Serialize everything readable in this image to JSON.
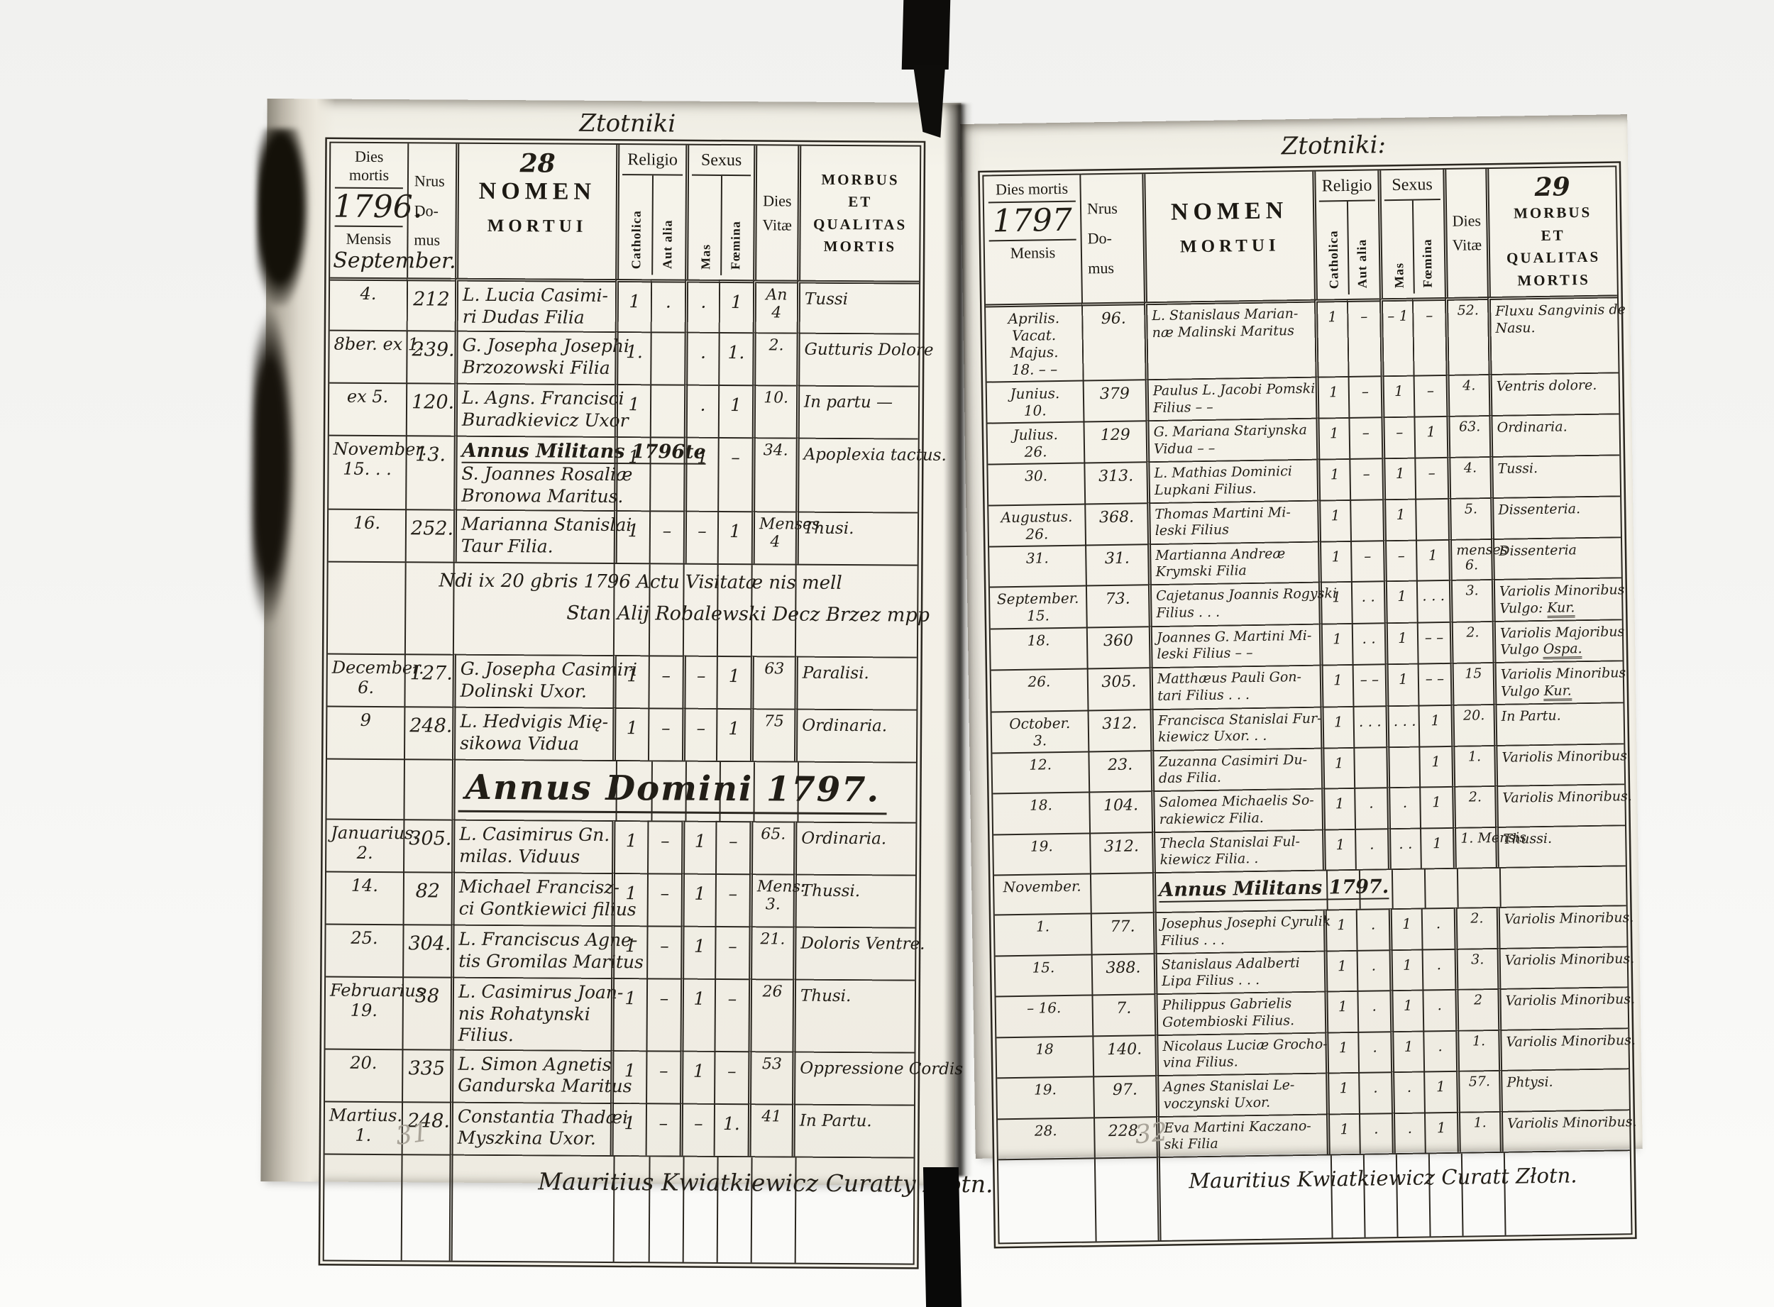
{
  "book": {
    "left_page": {
      "running_title": "Ztotniki",
      "page_number": "28",
      "pencil_mark": "31",
      "header": {
        "dies_mortis": "Dies mortis",
        "year": "1796.",
        "mensis_label": "Mensis",
        "month": "September.",
        "nrus": "Nrus\nDo-\nmus",
        "nomen": "NOMEN",
        "mortui": "MORTUI",
        "religio": "Religio",
        "catholica": "Catholica",
        "aut_alia": "Aut alia",
        "sexus": "Sexus",
        "mas": "Mas",
        "foemina": "Fœmina",
        "dies": "Dies",
        "vitae": "Vitæ",
        "morbus_lines": "MORBUS\nET\nQUALITAS\nMORTIS"
      },
      "rows": [
        {
          "date": "4.",
          "house": "212",
          "name": "L. Lucia Casimi-\nri Dudas Filia",
          "cath": "1",
          "aut": ".",
          "mas": ".",
          "foem": "1",
          "vitae": "An\n4",
          "morbus": "Tussi"
        },
        {
          "date": "8ber. ex 1.",
          "house": "239.",
          "name": "G. Josepha Josephi\nBrzozowski Filia",
          "cath": "1.",
          "aut": "",
          "mas": ".",
          "foem": "1.",
          "vitae": "2.",
          "morbus": "Gutturis Dolore"
        },
        {
          "date": "ex 5.",
          "house": "120.",
          "name": "L. Agns. Francisci\nBuradkievicz Uxor",
          "cath": "1",
          "aut": "",
          "mas": ".",
          "foem": "1",
          "vitae": "10.",
          "morbus": "In partu —"
        },
        {
          "date": "November.\n15. . .",
          "house": "13.",
          "heading": "Annus Militans 1796te",
          "name": "S. Joannes Rosaliæ\nBronowa Maritus.",
          "cath": "1",
          "aut": "",
          "mas": "1",
          "foem": "–",
          "vitae": "34.",
          "morbus": "Apoplexia tactus."
        },
        {
          "date": "16.",
          "house": "252.",
          "name": "Marianna Stanislai\nTaur Filia.",
          "cath": "1",
          "aut": "–",
          "mas": "–",
          "foem": "1",
          "vitae": "Menses\n4",
          "morbus": "Thusi."
        },
        {
          "type": "note",
          "line1": "Ndi ix 20 gbris 1796 Actu Visitatæ nis mell",
          "line2": "Stan Alij Robalewski Decz Brzez mpp"
        },
        {
          "date": "December.\n6.",
          "house": "127.",
          "name": "G. Josepha Casimiri\nDolinski Uxor.",
          "cath": "1",
          "aut": "–",
          "mas": "–",
          "foem": "1",
          "vitae": "63",
          "morbus": "Paralisi."
        },
        {
          "date": "9",
          "house": "248.",
          "name": "L. Hedvigis Mię-\nsikowa Vidua",
          "cath": "1",
          "aut": "–",
          "mas": "–",
          "foem": "1",
          "vitae": "75",
          "morbus": "Ordinaria."
        },
        {
          "type": "section",
          "date": "",
          "text": "Annus Domini 1797.",
          "big": true
        },
        {
          "date": "Januarius.\n2.",
          "house": "305.",
          "name": "L. Casimirus Gn.\nmilas. Viduus",
          "cath": "1",
          "aut": "–",
          "mas": "1",
          "foem": "–",
          "vitae": "65.",
          "morbus": "Ordinaria."
        },
        {
          "date": "14.",
          "house": "82",
          "name": "Michael Francisz-\nci Gontkiewici filius",
          "cath": "1",
          "aut": "–",
          "mas": "1",
          "foem": "–",
          "vitae": "Mens:\n3.",
          "morbus": "Thussi."
        },
        {
          "date": "25.",
          "house": "304.",
          "name": "L. Franciscus Agne-\ntis Gromilas Maritus",
          "cath": "1",
          "aut": "–",
          "mas": "1",
          "foem": "–",
          "vitae": "21.",
          "morbus": "Doloris Ventre."
        },
        {
          "date": "Februarius\n19.",
          "house": "38",
          "name": "L. Casimirus Joan-\nnis Rohatynski\nFilius.",
          "cath": "1",
          "aut": "–",
          "mas": "1",
          "foem": "–",
          "vitae": "26",
          "morbus": "Thusi."
        },
        {
          "date": "20.",
          "house": "335",
          "name": "L. Simon Agnetis\nGandurska Maritus",
          "cath": "1",
          "aut": "–",
          "mas": "1",
          "foem": "–",
          "vitae": "53",
          "morbus": "Oppressione Cordis"
        },
        {
          "date": "Martius.\n1.",
          "house": "248.",
          "name": "Constantia Thadæi\nMyszkina Uxor.",
          "cath": "1",
          "aut": "–",
          "mas": "–",
          "foem": "1.",
          "vitae": "41",
          "morbus": "In Partu."
        },
        {
          "type": "footer",
          "text": "Mauritius Kwiatkiewicz Curatty Złotn."
        }
      ]
    },
    "right_page": {
      "running_title": "Ztotniki:",
      "page_number": "29",
      "pencil_mark": "32",
      "header": {
        "dies_mortis": "Dies mortis",
        "year": "1797",
        "mensis_label": "Mensis",
        "month": "",
        "nrus": "Nrus\nDo-\nmus",
        "nomen": "NOMEN",
        "mortui": "MORTUI",
        "religio": "Religio",
        "catholica": "Catholica",
        "aut_alia": "Aut alia",
        "sexus": "Sexus",
        "mas": "Mas",
        "foemina": "Fœmina",
        "dies": "Dies",
        "vitae": "Vitæ",
        "morbus_lines": "MORBUS\nET\nQUALITAS\nMORTIS"
      },
      "rows": [
        {
          "date": "Aprilis.\nVacat.\nMajus.\n18. – –",
          "house": "96.",
          "name": "L. Stanislaus Marian-\nnæ Malinski Maritus",
          "cath": "1",
          "aut": "–",
          "mas": "– 1",
          "foem": "–",
          "vitae": "52.",
          "morbus": "Fluxu Sangvinis de\nNasu."
        },
        {
          "date": "Junius.\n10.",
          "house": "379",
          "name": "Paulus L. Jacobi Pomski\nFilius – –",
          "cath": "1",
          "aut": "–",
          "mas": "1",
          "foem": "–",
          "vitae": "4.",
          "morbus": "Ventris dolore."
        },
        {
          "date": "Julius.\n26.",
          "house": "129",
          "name": "G. Mariana Stariynska\nVidua – –",
          "cath": "1",
          "aut": "–",
          "mas": "–",
          "foem": "1",
          "vitae": "63.",
          "morbus": "Ordinaria."
        },
        {
          "date": "30.",
          "house": "313.",
          "name": "L. Mathias Dominici\nLupkani Filius.",
          "cath": "1",
          "aut": "–",
          "mas": "1",
          "foem": "–",
          "vitae": "4.",
          "morbus": "Tussi."
        },
        {
          "date": "Augustus.\n26.",
          "house": "368.",
          "name": "Thomas Martini Mi-\nleski Filius",
          "cath": "1",
          "aut": "",
          "mas": "1",
          "foem": "",
          "vitae": "5.",
          "morbus": "Dissenteria."
        },
        {
          "date": "31.",
          "house": "31.",
          "name": "Martianna Andreæ\nKrymski Filia",
          "cath": "1",
          "aut": "–",
          "mas": "–",
          "foem": "1",
          "vitae": "menses\n6.",
          "morbus": "Dissenteria"
        },
        {
          "date": "September.\n15.",
          "house": "73.",
          "name": "Cajetanus Joannis Rogyski\nFilius . . .",
          "cath": "1",
          "aut": ". .",
          "mas": "1",
          "foem": ". . .",
          "vitae": "3.",
          "morbus": "Variolis Minoribus\nVulgo: ",
          "morbus_u": "Kur."
        },
        {
          "date": "18.",
          "house": "360",
          "name": "Joannes G. Martini Mi-\nleski Filius – –",
          "cath": "1",
          "aut": ". .",
          "mas": "1",
          "foem": "– –",
          "vitae": "2.",
          "morbus": "Variolis Majoribus\nVulgo ",
          "morbus_u": "Ospa."
        },
        {
          "date": "26.",
          "house": "305.",
          "name": "Matthæus Pauli Gon-\ntari Filius . . .",
          "cath": "1",
          "aut": "– –",
          "mas": "1",
          "foem": "– –",
          "vitae": "15",
          "morbus": "Variolis Minoribus\nVulgo ",
          "morbus_u": "Kur."
        },
        {
          "date": "October.\n3.",
          "house": "312.",
          "name": "Francisca Stanislai Fur-\nkiewicz Uxor. . .",
          "cath": "1",
          "aut": ". . .",
          "mas": ". . .",
          "foem": "1",
          "vitae": "20.",
          "morbus": "In Partu."
        },
        {
          "date": "12.",
          "house": "23.",
          "name": "Zuzanna Casimiri Du-\ndas Filia.",
          "cath": "1",
          "aut": "",
          "mas": "",
          "foem": "1",
          "vitae": "1.",
          "morbus": "Variolis Minoribus"
        },
        {
          "date": "18.",
          "house": "104.",
          "name": "Salomea Michaelis So-\nrakiewicz Filia.",
          "cath": "1",
          "aut": ".",
          "mas": ".",
          "foem": "1",
          "vitae": "2.",
          "morbus": "Variolis Minoribus."
        },
        {
          "date": "19.",
          "house": "312.",
          "name": "Thecla Stanislai Ful-\nkiewicz Filia. .",
          "cath": "1",
          "aut": ".",
          "mas": ". .",
          "foem": "1",
          "vitae": "1. Mensis",
          "morbus": "Thussi."
        },
        {
          "type": "section",
          "date": "November.",
          "text": "Annus Militans 1797.",
          "big": false
        },
        {
          "date": "1.",
          "house": "77.",
          "name": "Josephus Josephi Cyrulik\nFilius . . .",
          "cath": "1",
          "aut": ".",
          "mas": "1",
          "foem": ".",
          "vitae": "2.",
          "morbus": "Variolis Minoribus."
        },
        {
          "date": "15.",
          "house": "388.",
          "name": "Stanislaus Adalberti\nLipa Filius . . .",
          "cath": "1",
          "aut": ".",
          "mas": "1",
          "foem": ".",
          "vitae": "3.",
          "morbus": "Variolis Minoribus."
        },
        {
          "date": "– 16.",
          "house": "7.",
          "name": "Philippus Gabrielis\nGotembioski Filius.",
          "cath": "1",
          "aut": ".",
          "mas": "1",
          "foem": ".",
          "vitae": "2",
          "morbus": "Variolis Minoribus."
        },
        {
          "date": "18",
          "house": "140.",
          "name": "Nicolaus Luciæ Grocho-\nvina Filius.",
          "cath": "1",
          "aut": ".",
          "mas": "1",
          "foem": ".",
          "vitae": "1.",
          "morbus": "Variolis Minoribus."
        },
        {
          "date": "19.",
          "house": "97.",
          "name": "Agnes Stanislai Le-\nvoczynski Uxor.",
          "cath": "1",
          "aut": ".",
          "mas": ".",
          "foem": "1",
          "vitae": "57.",
          "morbus": "Phtysi."
        },
        {
          "date": "28.",
          "house": "228.",
          "name": "Eva Martini Kaczano-\nski Filia",
          "cath": "1",
          "aut": ".",
          "mas": ".",
          "foem": "1",
          "vitae": "1.",
          "morbus": "Variolis Minoribus."
        },
        {
          "type": "footer",
          "text": "Mauritius Kwiatkiewicz Curatt Złotn."
        }
      ]
    }
  }
}
